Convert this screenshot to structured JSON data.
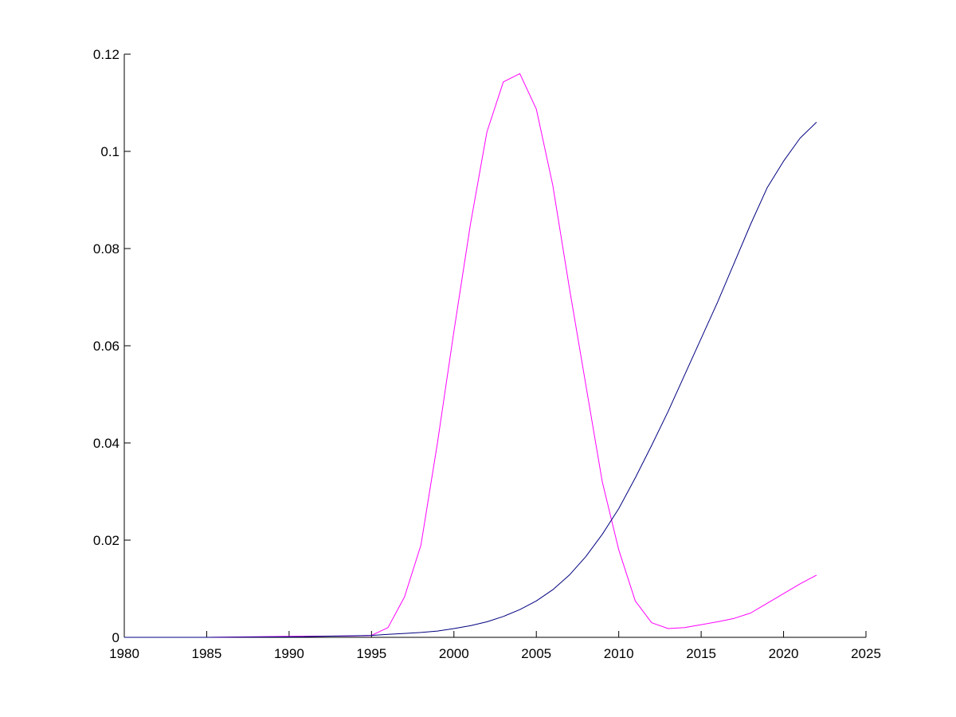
{
  "chart_data": {
    "type": "line",
    "title": "",
    "xlabel": "",
    "ylabel": "",
    "xlim": [
      1980,
      2025
    ],
    "ylim": [
      0,
      0.12
    ],
    "grid": false,
    "legend": "none",
    "x_ticks": [
      1980,
      1985,
      1990,
      1995,
      2000,
      2005,
      2010,
      2015,
      2020,
      2025
    ],
    "x_tick_labels": [
      "1980",
      "1985",
      "1990",
      "1995",
      "2000",
      "2005",
      "2010",
      "2015",
      "2020",
      "2025"
    ],
    "y_ticks": [
      0,
      0.02,
      0.04,
      0.06,
      0.08,
      0.1,
      0.12
    ],
    "y_tick_labels": [
      "0",
      "0.02",
      "0.04",
      "0.06",
      "0.08",
      "0.1",
      "0.12"
    ],
    "series": [
      {
        "color": "#ff00ff",
        "x": [
          1980,
          1985,
          1990,
          1994,
          1995,
          1996,
          1997,
          1998,
          1999,
          2000,
          2001,
          2002,
          2003,
          2004,
          2005,
          2006,
          2007,
          2008,
          2009,
          2010,
          2011,
          2012,
          2013,
          2014,
          2015,
          2016,
          2017,
          2018,
          2019,
          2020,
          2021,
          2022
        ],
        "y": [
          0,
          0,
          0.0002,
          0.0003,
          0.0004,
          0.002,
          0.0083,
          0.019,
          0.04,
          0.063,
          0.085,
          0.104,
          0.1143,
          0.116,
          0.1087,
          0.093,
          0.072,
          0.052,
          0.032,
          0.018,
          0.0075,
          0.003,
          0.0018,
          0.002,
          0.0026,
          0.0032,
          0.0039,
          0.005,
          0.007,
          0.009,
          0.011,
          0.0128
        ]
      },
      {
        "color": "#000080",
        "x": [
          1980,
          1985,
          1990,
          1995,
          1996,
          1997,
          1998,
          1999,
          2000,
          2001,
          2002,
          2003,
          2004,
          2005,
          2006,
          2007,
          2008,
          2009,
          2010,
          2011,
          2012,
          2013,
          2014,
          2015,
          2016,
          2017,
          2018,
          2019,
          2020,
          2021,
          2022
        ],
        "y": [
          0,
          0,
          0.0001,
          0.0004,
          0.0006,
          0.0008,
          0.001,
          0.0013,
          0.0018,
          0.0024,
          0.0032,
          0.0043,
          0.0057,
          0.0075,
          0.0098,
          0.0128,
          0.0166,
          0.0212,
          0.0265,
          0.0328,
          0.0395,
          0.0465,
          0.054,
          0.0615,
          0.069,
          0.077,
          0.085,
          0.0925,
          0.098,
          0.1027,
          0.106
        ]
      }
    ]
  }
}
